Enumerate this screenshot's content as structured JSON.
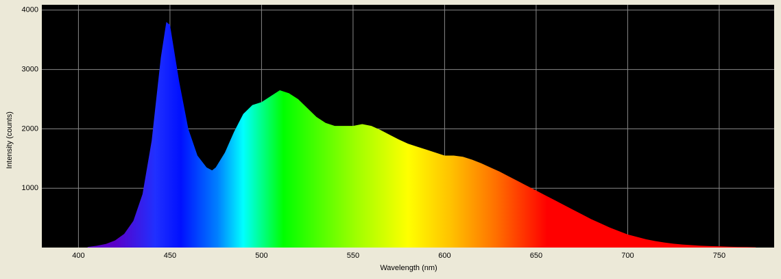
{
  "chart_data": {
    "type": "area",
    "x_label": "Wavelength (nm)",
    "y_label": "Intensity (counts)",
    "x": [
      405,
      410,
      415,
      420,
      425,
      430,
      435,
      440,
      445,
      448,
      450,
      455,
      460,
      465,
      470,
      473,
      475,
      480,
      485,
      490,
      495,
      500,
      505,
      510,
      515,
      520,
      525,
      530,
      535,
      540,
      545,
      550,
      555,
      560,
      565,
      570,
      575,
      580,
      585,
      590,
      595,
      600,
      605,
      610,
      615,
      620,
      625,
      630,
      635,
      640,
      645,
      650,
      655,
      660,
      665,
      670,
      675,
      680,
      685,
      690,
      695,
      700,
      705,
      710,
      715,
      720,
      725,
      730,
      735,
      740,
      745,
      750,
      755,
      760,
      765,
      770
    ],
    "values": [
      10,
      30,
      60,
      120,
      230,
      450,
      900,
      1800,
      3200,
      3800,
      3750,
      2800,
      2000,
      1550,
      1350,
      1300,
      1350,
      1600,
      1950,
      2250,
      2400,
      2450,
      2550,
      2650,
      2600,
      2500,
      2350,
      2200,
      2100,
      2050,
      2050,
      2050,
      2080,
      2050,
      1980,
      1900,
      1820,
      1750,
      1700,
      1650,
      1600,
      1550,
      1550,
      1530,
      1480,
      1420,
      1350,
      1280,
      1200,
      1120,
      1040,
      960,
      880,
      800,
      720,
      640,
      560,
      480,
      410,
      340,
      280,
      220,
      180,
      140,
      110,
      85,
      65,
      50,
      40,
      30,
      25,
      20,
      15,
      10,
      8,
      5
    ],
    "xlim": [
      380,
      780
    ],
    "ylim": [
      0,
      4090
    ],
    "xticks": [
      400,
      450,
      500,
      550,
      600,
      650,
      700,
      750
    ],
    "yticks": [
      1000,
      2000,
      3000,
      4000
    ],
    "grid": true
  }
}
